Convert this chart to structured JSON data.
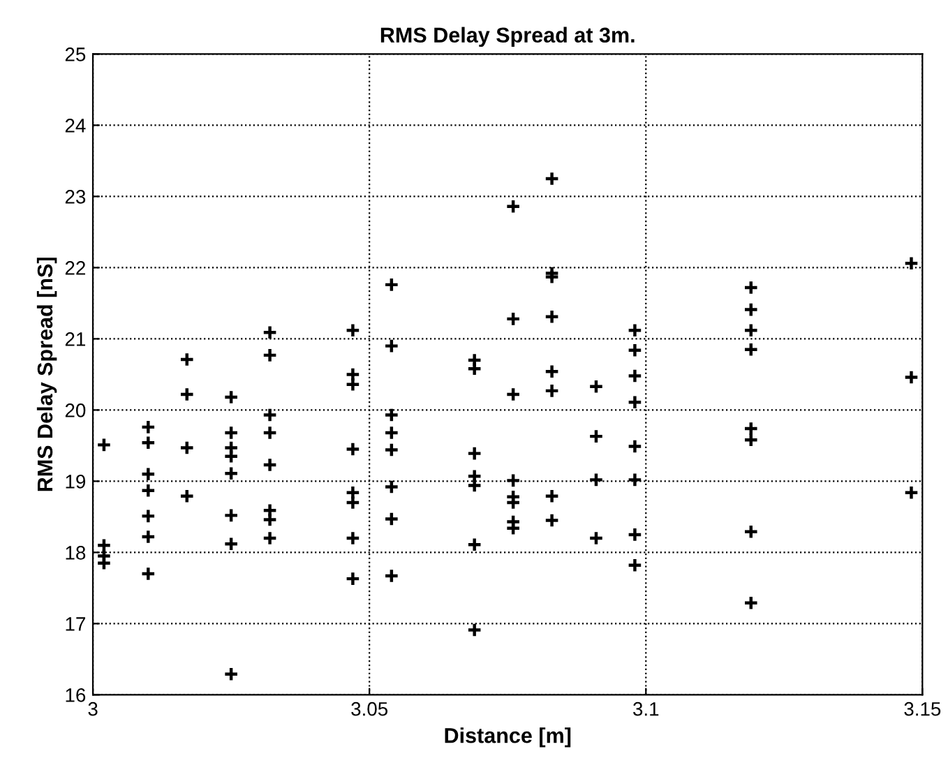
{
  "chart_data": {
    "type": "scatter",
    "title": "RMS Delay Spread at 3m.",
    "xlabel": "Distance [m]",
    "ylabel": "RMS Delay Spread [nS]",
    "xlim": [
      3,
      3.15
    ],
    "xticks": [
      3,
      3.05,
      3.1,
      3.15
    ],
    "ylim": [
      16,
      25
    ],
    "yticks": [
      16,
      17,
      18,
      19,
      20,
      21,
      22,
      23,
      24,
      25
    ],
    "grid": true,
    "marker": "cross",
    "line_style": "dotted",
    "series": [
      {
        "color": "#000000",
        "x": [
          3.002,
          3.002,
          3.002,
          3.002,
          3.01,
          3.01,
          3.01,
          3.01,
          3.01,
          3.01,
          3.01,
          3.017,
          3.017,
          3.017,
          3.017,
          3.025,
          3.025,
          3.025,
          3.025,
          3.025,
          3.025,
          3.025,
          3.025,
          3.032,
          3.032,
          3.032,
          3.032,
          3.032,
          3.032,
          3.032,
          3.032,
          3.047,
          3.047,
          3.047,
          3.047,
          3.047,
          3.047,
          3.047,
          3.047,
          3.054,
          3.054,
          3.054,
          3.054,
          3.054,
          3.054,
          3.054,
          3.054,
          3.069,
          3.069,
          3.069,
          3.069,
          3.069,
          3.069,
          3.069,
          3.076,
          3.076,
          3.076,
          3.076,
          3.076,
          3.076,
          3.076,
          3.076,
          3.083,
          3.083,
          3.083,
          3.083,
          3.083,
          3.083,
          3.083,
          3.083,
          3.091,
          3.091,
          3.091,
          3.091,
          3.098,
          3.098,
          3.098,
          3.098,
          3.098,
          3.098,
          3.098,
          3.098,
          3.119,
          3.119,
          3.119,
          3.119,
          3.119,
          3.119,
          3.119,
          3.119,
          3.148,
          3.148,
          3.148
        ],
        "values": [
          19.51,
          18.1,
          17.95,
          17.85,
          19.76,
          19.54,
          19.1,
          18.87,
          18.51,
          18.22,
          17.7,
          20.71,
          20.22,
          19.47,
          18.79,
          20.18,
          19.68,
          19.47,
          19.35,
          19.11,
          18.52,
          18.12,
          16.29,
          21.09,
          20.77,
          19.93,
          19.68,
          19.23,
          18.59,
          18.46,
          18.2,
          21.12,
          20.5,
          20.36,
          19.45,
          18.84,
          18.7,
          18.2,
          17.63,
          21.76,
          20.9,
          19.93,
          19.68,
          19.44,
          18.92,
          18.47,
          17.67,
          20.7,
          20.58,
          19.39,
          19.07,
          18.94,
          18.11,
          16.91,
          22.86,
          21.28,
          20.22,
          19.01,
          18.78,
          18.7,
          18.43,
          18.34,
          23.25,
          21.92,
          21.87,
          21.31,
          20.54,
          20.27,
          18.79,
          18.45,
          20.33,
          19.63,
          19.02,
          18.2,
          21.12,
          20.84,
          20.48,
          20.11,
          19.49,
          19.02,
          18.25,
          17.82,
          21.72,
          21.41,
          21.12,
          20.85,
          19.74,
          19.58,
          18.29,
          17.29,
          22.06,
          20.46,
          18.84
        ]
      }
    ]
  }
}
